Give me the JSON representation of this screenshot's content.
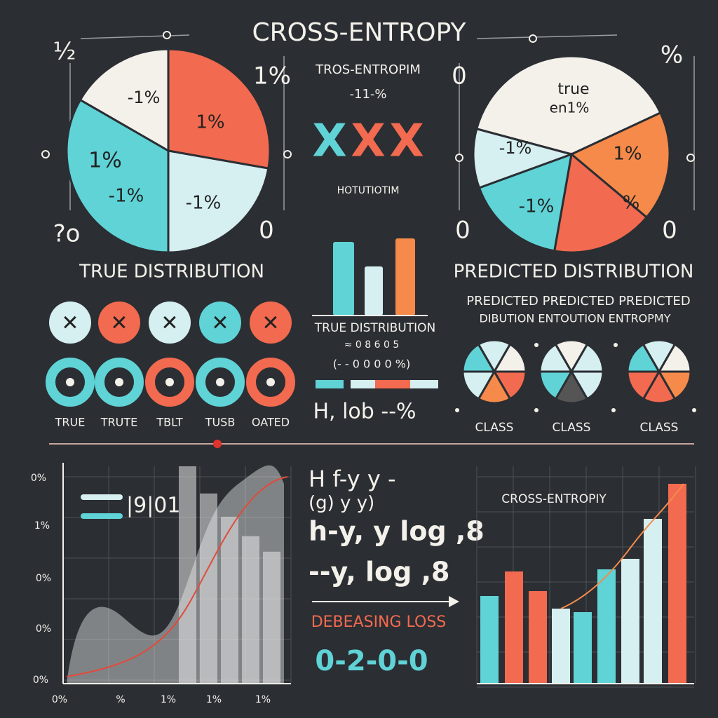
{
  "title": "CROSS-ENTROPY",
  "true_pie": {
    "corner_labels": [
      "½",
      "1%",
      "?o",
      "0"
    ],
    "slice_labels": [
      "-1%",
      "1%",
      "1%",
      "-1%",
      "-1%"
    ],
    "caption": "TRUE DISTRIBUTION"
  },
  "center_panel": {
    "heading": "TROS-ENTROPIM",
    "subheading": "-11-%",
    "symbols": [
      "X",
      "X",
      "X"
    ],
    "note": "HOTUTIOTIM",
    "bar_caption": "TRUE DISTRIBUTION",
    "bar_sub": "≈ 0 8 6 0 5",
    "bar_values_text": "(- - 0 0 0 0 %)",
    "formula": "H, lob --%"
  },
  "predicted_pie": {
    "corner_labels": [
      "0",
      "%",
      "0",
      "0"
    ],
    "slice_labels": [
      "true",
      "en1%",
      "-1%",
      "1%",
      "-1%",
      "%"
    ],
    "caption": "PREDICTED DISTRIBUTION",
    "sub_line_1": "PREDICTED  PREDICTED  PREDICTED",
    "sub_line_2": "DIBUTION ENTOUTION ENTROPMY"
  },
  "icon_labels": [
    "TRUE",
    "TRUTE",
    "TBLT",
    "TUSB",
    "OATED"
  ],
  "class_labels": [
    "CLASS",
    "CLASS",
    "CLASS"
  ],
  "loss_chart": {
    "y_labels": [
      "0%",
      "1%",
      "0%",
      "0%",
      "0%"
    ],
    "x_labels": [
      "0%",
      "%",
      "1%",
      "1%",
      "1%"
    ],
    "legend_text": "|9|01"
  },
  "formula_panel": {
    "lines": [
      "H f-y y -",
      "(g) y y)",
      "h-y, y log ,8",
      "--y, log ,8"
    ],
    "caption": "DEBEASING LOSS",
    "sequence": "0-2-0-0"
  },
  "entropy_chart": {
    "title": "CROSS-ENTROPIY"
  }
}
